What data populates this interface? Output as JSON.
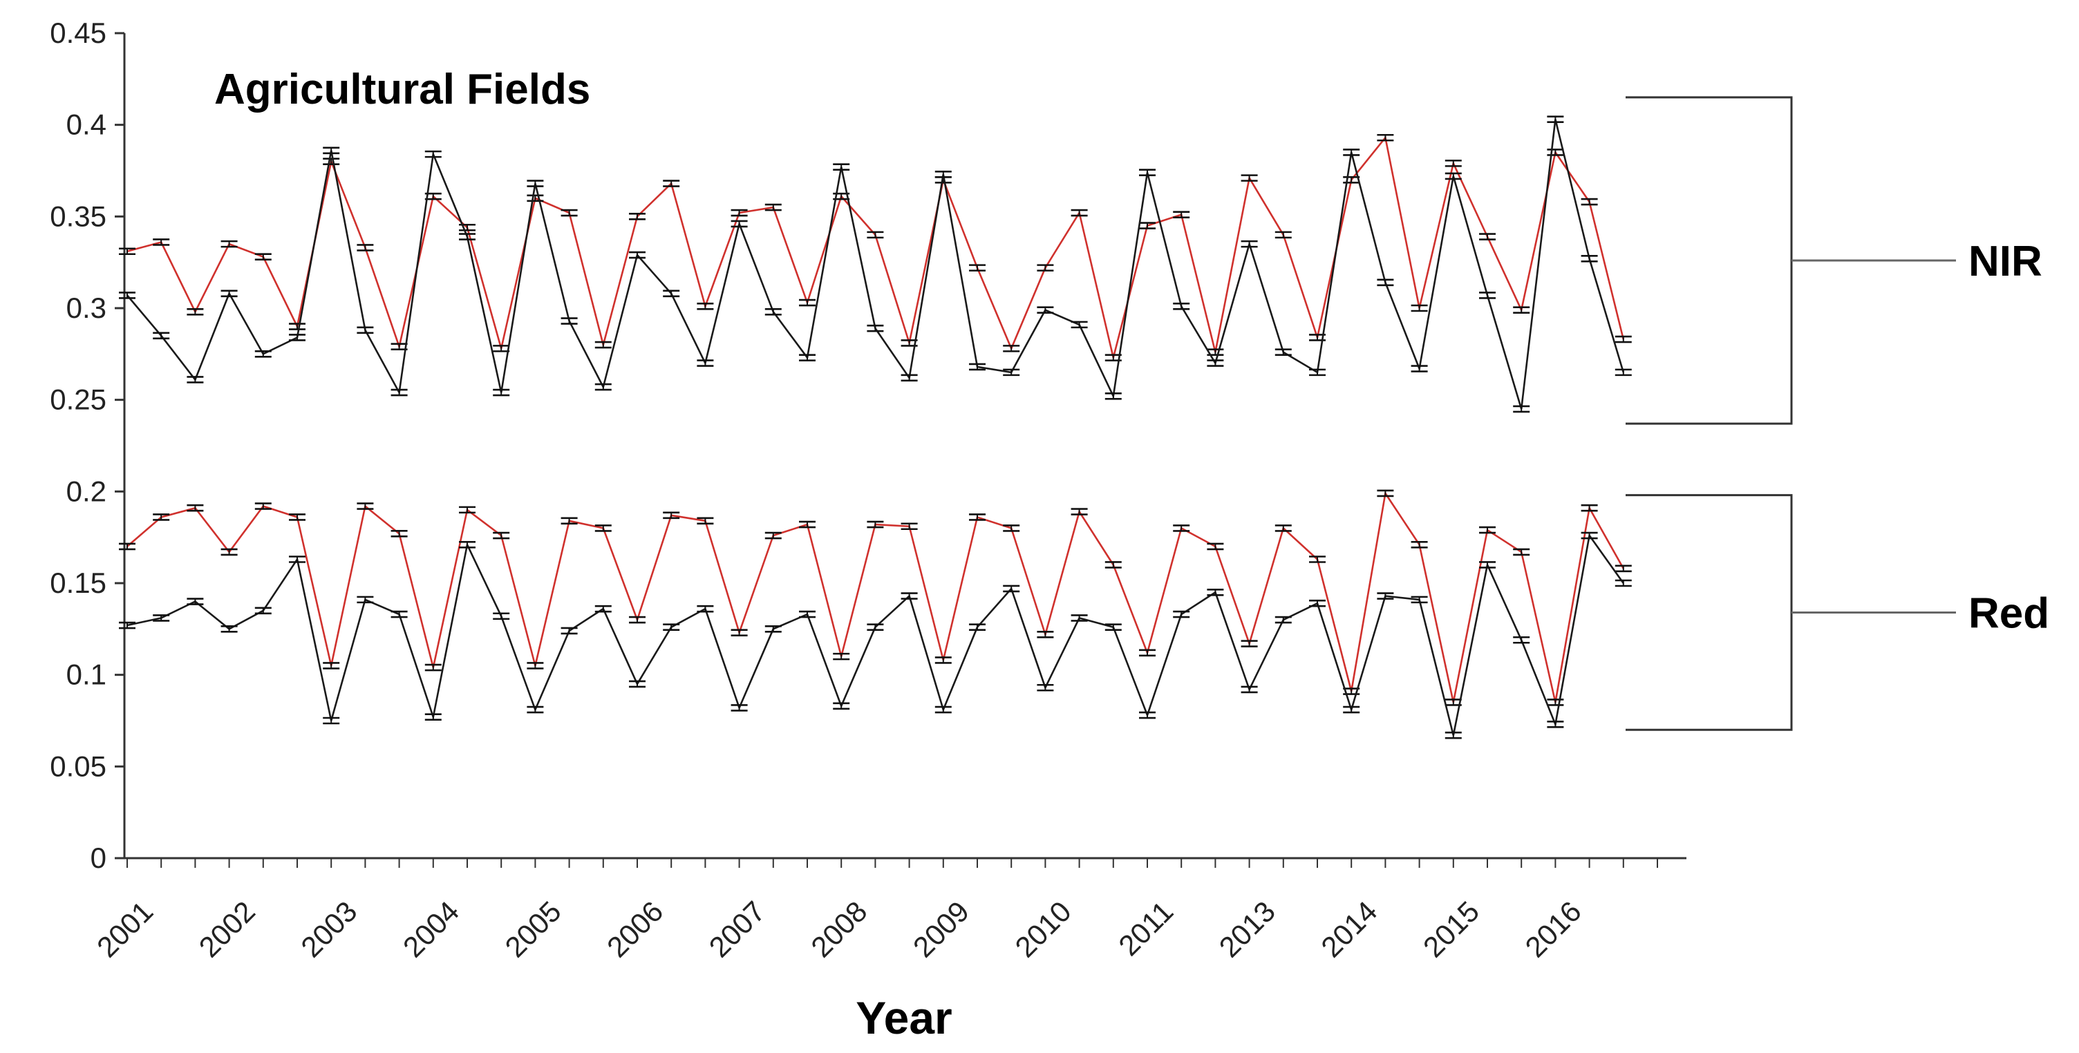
{
  "chart_data": {
    "type": "line",
    "title": "Agricultural Fields",
    "xlabel": "Year",
    "ylabel": "",
    "ylim": [
      0,
      0.45
    ],
    "yticks": [
      "0",
      "0.05",
      "0.1",
      "0.15",
      "0.2",
      "0.25",
      "0.3",
      "0.35",
      "0.4",
      "0.45"
    ],
    "x_tick_labels": [
      "2001",
      "2002",
      "2003",
      "2004",
      "2005",
      "2006",
      "2007",
      "2008",
      "2009",
      "2010",
      "2011",
      "2013",
      "2014",
      "2015",
      "2016"
    ],
    "points_per_year": 3,
    "grid": false,
    "error_bars": true,
    "series": [
      {
        "name": "NIR (red line)",
        "color": "#d0312d",
        "values": [
          0.331,
          0.336,
          0.298,
          0.335,
          0.328,
          0.29,
          0.38,
          0.333,
          0.279,
          0.361,
          0.344,
          0.278,
          0.36,
          0.352,
          0.28,
          0.35,
          0.368,
          0.301,
          0.352,
          0.355,
          0.303,
          0.361,
          0.34,
          0.281,
          0.37,
          0.322,
          0.278,
          0.322,
          0.352,
          0.273,
          0.345,
          0.351,
          0.276,
          0.371,
          0.34,
          0.284,
          0.37,
          0.393,
          0.3,
          0.379,
          0.339,
          0.299,
          0.385,
          0.358,
          0.283
        ]
      },
      {
        "name": "NIR (black line)",
        "color": "#1a1a1a",
        "values": [
          0.307,
          0.285,
          0.261,
          0.308,
          0.275,
          0.284,
          0.386,
          0.288,
          0.254,
          0.384,
          0.339,
          0.254,
          0.368,
          0.293,
          0.257,
          0.329,
          0.308,
          0.27,
          0.346,
          0.298,
          0.273,
          0.377,
          0.289,
          0.262,
          0.373,
          0.268,
          0.265,
          0.299,
          0.291,
          0.252,
          0.374,
          0.301,
          0.27,
          0.335,
          0.276,
          0.265,
          0.385,
          0.314,
          0.267,
          0.372,
          0.307,
          0.245,
          0.403,
          0.327,
          0.265
        ]
      },
      {
        "name": "Red (red line)",
        "color": "#d0312d",
        "values": [
          0.17,
          0.186,
          0.191,
          0.167,
          0.192,
          0.186,
          0.105,
          0.192,
          0.177,
          0.104,
          0.19,
          0.176,
          0.105,
          0.184,
          0.18,
          0.13,
          0.187,
          0.184,
          0.123,
          0.176,
          0.182,
          0.11,
          0.182,
          0.181,
          0.108,
          0.186,
          0.18,
          0.122,
          0.189,
          0.16,
          0.112,
          0.18,
          0.17,
          0.117,
          0.18,
          0.163,
          0.091,
          0.199,
          0.171,
          0.085,
          0.179,
          0.167,
          0.085,
          0.191,
          0.158
        ]
      },
      {
        "name": "Red (black line)",
        "color": "#1a1a1a",
        "values": [
          0.127,
          0.131,
          0.14,
          0.125,
          0.135,
          0.163,
          0.075,
          0.141,
          0.133,
          0.077,
          0.171,
          0.132,
          0.081,
          0.124,
          0.136,
          0.095,
          0.126,
          0.136,
          0.082,
          0.125,
          0.133,
          0.083,
          0.126,
          0.143,
          0.081,
          0.126,
          0.147,
          0.093,
          0.131,
          0.126,
          0.078,
          0.133,
          0.145,
          0.092,
          0.13,
          0.139,
          0.081,
          0.143,
          0.141,
          0.067,
          0.16,
          0.119,
          0.073,
          0.176,
          0.15
        ]
      }
    ],
    "annotations": [
      {
        "label": "NIR",
        "range": [
          0.237,
          0.415
        ]
      },
      {
        "label": "Red",
        "range": [
          0.07,
          0.198
        ]
      }
    ]
  }
}
